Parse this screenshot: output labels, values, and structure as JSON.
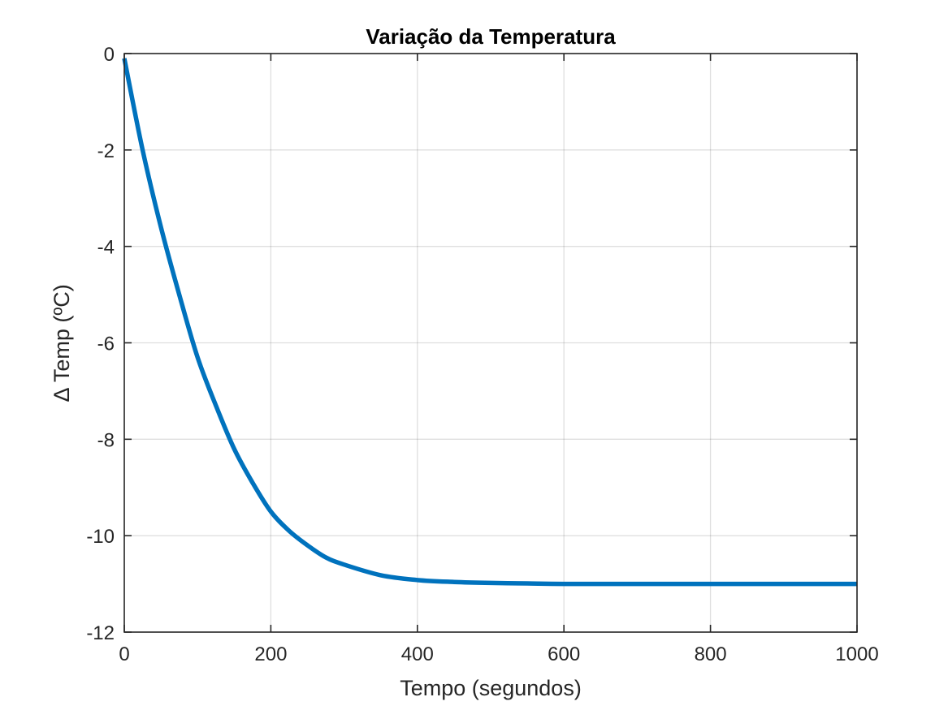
{
  "chart_data": {
    "type": "line",
    "title": "Variação da Temperatura",
    "xlabel": "Tempo (segundos)",
    "ylabel": "∆ Temp (ºC)",
    "xlim": [
      0,
      1000
    ],
    "ylim": [
      -12,
      0
    ],
    "xticks": [
      0,
      200,
      400,
      600,
      800,
      1000
    ],
    "yticks": [
      0,
      -2,
      -4,
      -6,
      -8,
      -10,
      -12
    ],
    "xtick_labels": [
      "0",
      "200",
      "400",
      "600",
      "800",
      "1000"
    ],
    "ytick_labels": [
      "0",
      "-2",
      "-4",
      "-6",
      "-8",
      "-10",
      "-12"
    ],
    "grid": true,
    "series": [
      {
        "color": "#0072BD",
        "x": [
          0,
          25,
          50,
          75,
          100,
          125,
          150,
          175,
          200,
          225,
          250,
          275,
          300,
          350,
          400,
          450,
          500,
          550,
          600,
          700,
          800,
          900,
          1000
        ],
        "y": [
          -0.1,
          -2.0,
          -3.6,
          -5.0,
          -6.3,
          -7.3,
          -8.2,
          -8.9,
          -9.5,
          -9.9,
          -10.2,
          -10.45,
          -10.6,
          -10.82,
          -10.92,
          -10.96,
          -10.98,
          -10.99,
          -11.0,
          -11.0,
          -11.0,
          -11.0,
          -11.0
        ]
      }
    ]
  }
}
